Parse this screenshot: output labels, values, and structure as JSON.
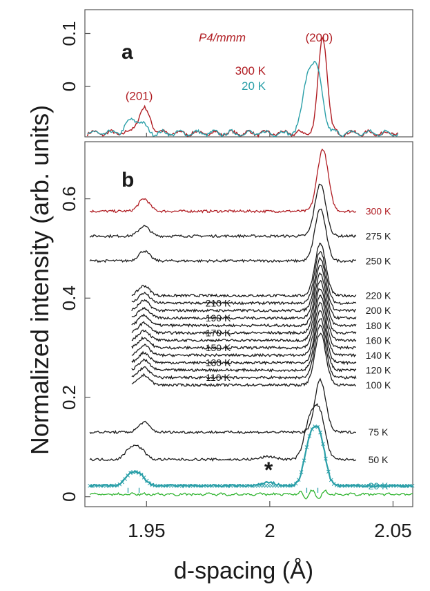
{
  "colors": {
    "red": "#b01c22",
    "teal": "#2a9fa8",
    "black": "#1a1a1a",
    "green": "#2db32d"
  },
  "ylabel": "Normalized intensity (arb. units)",
  "xlabel": "d-spacing (Å)",
  "chart_data": [
    {
      "type": "line",
      "panel_label": "a",
      "space_group": "P4/mmm",
      "xlim": [
        1.925,
        2.058
      ],
      "ylim": [
        -0.095,
        0.145
      ],
      "yticks": [
        0,
        0.1
      ],
      "ytick_labels": [
        "0",
        "0.1"
      ],
      "peak_labels": [
        {
          "text": "(201)",
          "x": 1.947,
          "y": -0.025
        },
        {
          "text": "(200)",
          "x": 2.02,
          "y": 0.085
        }
      ],
      "series": [
        {
          "name": "300 K",
          "color": "red",
          "peaks": [
            {
              "x": 1.949,
              "h": 0.045,
              "w": 0.0025
            },
            {
              "x": 2.0215,
              "h": 0.182,
              "w": 0.0018
            }
          ],
          "base": -0.088
        },
        {
          "name": "20 K",
          "color": "teal",
          "peaks": [
            {
              "x": 1.9435,
              "h": 0.02,
              "w": 0.0022
            },
            {
              "x": 1.9475,
              "h": 0.018,
              "w": 0.0022
            },
            {
              "x": 2.0155,
              "h": 0.1,
              "w": 0.0022
            },
            {
              "x": 2.0195,
              "h": 0.1,
              "w": 0.0022
            }
          ],
          "base": -0.088
        }
      ]
    },
    {
      "type": "line",
      "panel_label": "b",
      "xlim": [
        1.925,
        2.058
      ],
      "ylim": [
        -0.02,
        0.715
      ],
      "xticks": [
        1.95,
        2.0,
        2.05
      ],
      "xtick_labels": [
        "1.95",
        "2",
        "2.05"
      ],
      "yticks": [
        0,
        0.2,
        0.4,
        0.6
      ],
      "ytick_labels": [
        "0",
        "0.2",
        "0.4",
        "0.6"
      ],
      "asterisk": {
        "text": "*",
        "x": 1.9995,
        "y": 0.055
      },
      "series": [
        {
          "name": "300 K",
          "color": "red",
          "base": 0.575,
          "x_range": [
            1.925,
            2.035
          ],
          "label_side": "right"
        },
        {
          "name": "275 K",
          "color": "black",
          "base": 0.525,
          "x_range": [
            1.925,
            2.035
          ],
          "label_side": "right"
        },
        {
          "name": "250 K",
          "color": "black",
          "base": 0.475,
          "x_range": [
            1.925,
            2.035
          ],
          "label_side": "right"
        },
        {
          "name": "220 K",
          "color": "black",
          "base": 0.405,
          "x_range": [
            1.942,
            2.035
          ],
          "label_side": "right"
        },
        {
          "name": "210 K",
          "color": "black",
          "base": 0.39,
          "x_range": [
            1.942,
            2.035
          ],
          "label_side": "left"
        },
        {
          "name": "200 K",
          "color": "black",
          "base": 0.375,
          "x_range": [
            1.942,
            2.035
          ],
          "label_side": "right"
        },
        {
          "name": "190 K",
          "color": "black",
          "base": 0.36,
          "x_range": [
            1.942,
            2.035
          ],
          "label_side": "left"
        },
        {
          "name": "180 K",
          "color": "black",
          "base": 0.345,
          "x_range": [
            1.942,
            2.035
          ],
          "label_side": "right"
        },
        {
          "name": "170 K",
          "color": "black",
          "base": 0.33,
          "x_range": [
            1.942,
            2.035
          ],
          "label_side": "left"
        },
        {
          "name": "160 K",
          "color": "black",
          "base": 0.315,
          "x_range": [
            1.942,
            2.035
          ],
          "label_side": "right"
        },
        {
          "name": "150 K",
          "color": "black",
          "base": 0.3,
          "x_range": [
            1.942,
            2.035
          ],
          "label_side": "left"
        },
        {
          "name": "140 K",
          "color": "black",
          "base": 0.285,
          "x_range": [
            1.942,
            2.035
          ],
          "label_side": "right"
        },
        {
          "name": "130 K",
          "color": "black",
          "base": 0.27,
          "x_range": [
            1.942,
            2.035
          ],
          "label_side": "left"
        },
        {
          "name": "120 K",
          "color": "black",
          "base": 0.255,
          "x_range": [
            1.942,
            2.035
          ],
          "label_side": "right"
        },
        {
          "name": "110 K",
          "color": "black",
          "base": 0.24,
          "x_range": [
            1.942,
            2.035
          ],
          "label_side": "left"
        },
        {
          "name": "100 K",
          "color": "black",
          "base": 0.225,
          "x_range": [
            1.942,
            2.035
          ],
          "label_side": "right"
        },
        {
          "name": "75 K",
          "color": "black",
          "base": 0.13,
          "x_range": [
            1.925,
            2.035
          ],
          "label_side": "right"
        },
        {
          "name": "50 K",
          "color": "black",
          "base": 0.075,
          "x_range": [
            1.925,
            2.035
          ],
          "label_side": "right"
        },
        {
          "name": "20 K",
          "color": "teal",
          "base": 0.022,
          "x_range": [
            1.925,
            2.058
          ],
          "label_side": "right"
        }
      ]
    }
  ]
}
